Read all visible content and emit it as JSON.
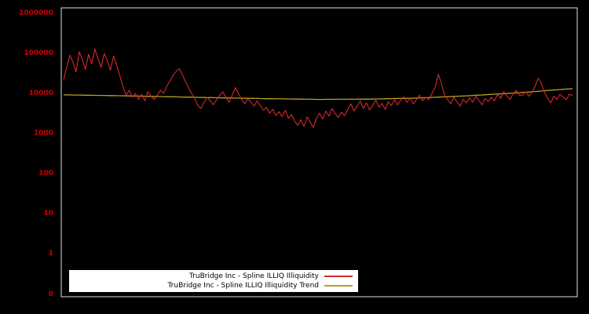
{
  "figure": {
    "background": "#000000",
    "border_color": "#e0e0e0"
  },
  "chart_data": {
    "type": "line",
    "title": "",
    "xlabel": "",
    "ylabel": "",
    "y_scale": "log",
    "grid": false,
    "legend_position": "bottom-center",
    "y_tick_color": "#cc0000",
    "y_ticks": [
      "1000000",
      "100000",
      "10000",
      "1000",
      "100",
      "10",
      "1",
      "0"
    ],
    "ylim_log": [
      1,
      1000000
    ],
    "series": [
      {
        "name": "TruBridge Inc - Spline ILLIQ Illiquidity",
        "color": "#d62828",
        "values": [
          22000,
          45000,
          90000,
          60000,
          35000,
          110000,
          70000,
          40000,
          95000,
          55000,
          130000,
          75000,
          45000,
          100000,
          65000,
          38000,
          85000,
          50000,
          28000,
          15000,
          9000,
          12000,
          8000,
          10000,
          7000,
          9500,
          6500,
          11000,
          8500,
          7000,
          9000,
          12000,
          10000,
          15000,
          20000,
          28000,
          35000,
          42000,
          30000,
          20000,
          14000,
          10000,
          7500,
          5000,
          4200,
          6000,
          8000,
          6500,
          5200,
          7000,
          9000,
          11000,
          8000,
          6000,
          9000,
          14000,
          10000,
          7000,
          5500,
          7500,
          6000,
          4800,
          6500,
          5000,
          3800,
          4500,
          3200,
          4000,
          2800,
          3500,
          2600,
          3800,
          2400,
          3000,
          2000,
          1600,
          2200,
          1500,
          2600,
          1900,
          1400,
          2400,
          3200,
          2300,
          3600,
          2700,
          4200,
          3100,
          2500,
          3400,
          2800,
          4000,
          5500,
          3600,
          4800,
          6500,
          4200,
          5800,
          3900,
          5000,
          6800,
          4500,
          5600,
          4000,
          6200,
          5000,
          7000,
          5200,
          6800,
          8200,
          6000,
          7800,
          5500,
          7000,
          9000,
          6500,
          8000,
          7000,
          10000,
          14000,
          30000,
          18000,
          9000,
          7000,
          5500,
          8000,
          6200,
          4800,
          7200,
          5800,
          7800,
          6000,
          8500,
          6800,
          5200,
          7500,
          6300,
          8000,
          6500,
          9500,
          7500,
          11000,
          8500,
          7000,
          10000,
          12000,
          9000,
          9000,
          11000,
          8500,
          10500,
          15000,
          24000,
          18000,
          11000,
          7500,
          5800,
          8500,
          7000,
          9500,
          8000,
          7000,
          9500,
          8800
        ]
      },
      {
        "name": "TruBridge Inc - Spline ILLIQ Illiquidity Trend",
        "color": "#b8a11c",
        "trend_points": [
          [
            0.0,
            9200
          ],
          [
            0.1,
            8800
          ],
          [
            0.2,
            8300
          ],
          [
            0.3,
            7800
          ],
          [
            0.4,
            7400
          ],
          [
            0.5,
            7100
          ],
          [
            0.6,
            7200
          ],
          [
            0.7,
            7700
          ],
          [
            0.8,
            8800
          ],
          [
            0.9,
            10500
          ],
          [
            1.0,
            13200
          ]
        ]
      }
    ]
  },
  "legend": {
    "entries": [
      {
        "label": "TruBridge Inc - Spline ILLIQ Illiquidity"
      },
      {
        "label": "TruBridge Inc - Spline ILLIQ Illiquidity Trend"
      }
    ]
  }
}
